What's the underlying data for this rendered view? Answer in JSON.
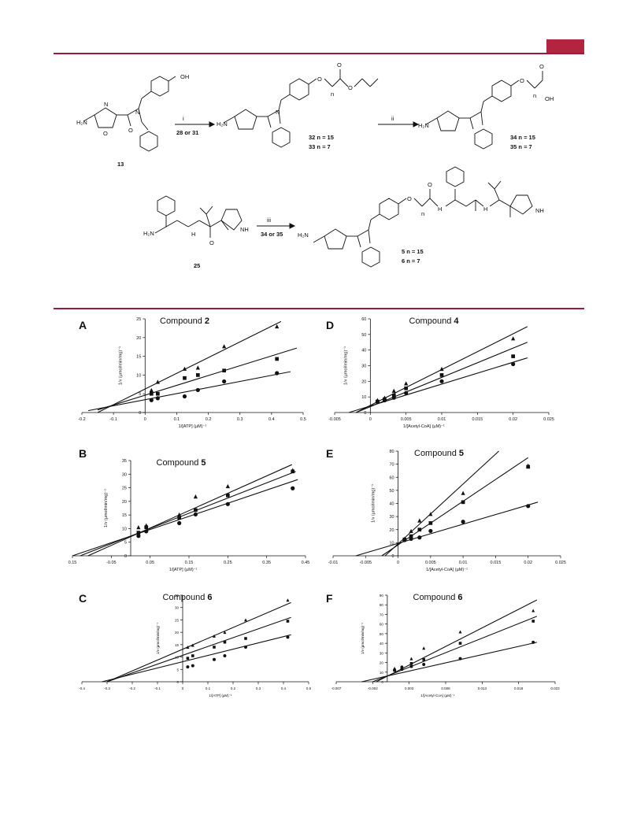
{
  "scheme": {
    "reagent1_top": "i",
    "reagent1_bottom": "28 or 31",
    "reagent2_top": "ii",
    "reagent3_top": "iii",
    "reagent3_bottom": "34 or 35",
    "compounds": {
      "c13": "13",
      "c32": "32  n = 15",
      "c33": "33  n = 7",
      "c34": "34  n = 15",
      "c35": "35  n = 7",
      "c25": "25",
      "c5": "5   n = 15",
      "c6": "6   n = 7"
    },
    "atoms": {
      "oh": "OH",
      "h2n": "H₂N",
      "o": "O",
      "n": "N",
      "nh": "NH",
      "h": "H",
      "sub_n": "n"
    }
  },
  "chart_data": [
    {
      "panel": "A",
      "type": "scatter",
      "title": "Compound 2",
      "xlabel": "1/[ATP] (µM)⁻¹",
      "ylabel": "1/v (µmol/min/mg)⁻¹",
      "xlim": [
        -0.2,
        0.5
      ],
      "ylim": [
        0,
        25
      ],
      "xticks": [
        -0.2,
        -0.1,
        0,
        0.1,
        0.2,
        0.3,
        0.4,
        0.5
      ],
      "xtick_labels": [
        "-0.2",
        "-0.1",
        "0",
        "0.1",
        "0.2",
        "0.3",
        "0.4",
        "0.5"
      ],
      "yticks": [
        0,
        5,
        10,
        15,
        20,
        25
      ],
      "ytick_labels": [
        "0",
        "5",
        "10",
        "15",
        "20",
        "25"
      ],
      "series": [
        {
          "marker": "triangle",
          "x": [
            0.02,
            0.04,
            0.125,
            0.167,
            0.25,
            0.417
          ],
          "y": [
            6.0,
            8.2,
            11.7,
            12.0,
            17.7,
            23.0
          ],
          "line": [
            -0.15,
            0.0,
            0.43,
            24.3
          ]
        },
        {
          "marker": "square",
          "x": [
            0.02,
            0.04,
            0.125,
            0.167,
            0.25,
            0.417
          ],
          "y": [
            5.0,
            5.0,
            9.2,
            10.0,
            11.2,
            14.3
          ],
          "line": [
            -0.15,
            0.7,
            0.48,
            17.2
          ]
        },
        {
          "marker": "circle",
          "x": [
            0.02,
            0.04,
            0.125,
            0.167,
            0.25,
            0.417
          ],
          "y": [
            3.3,
            3.8,
            4.3,
            6.0,
            8.3,
            10.5
          ],
          "line": [
            -0.18,
            0.5,
            0.46,
            10.9
          ]
        }
      ]
    },
    {
      "panel": "D",
      "type": "scatter",
      "title": "Compound 4",
      "xlabel": "1/[Acetyl-CoA] (µM)⁻¹",
      "ylabel": "1/v (µmol/min/mg)⁻¹",
      "xlim": [
        -0.005,
        0.025
      ],
      "ylim": [
        0,
        60
      ],
      "xticks": [
        -0.005,
        0,
        0.005,
        0.01,
        0.015,
        0.02,
        0.025
      ],
      "xtick_labels": [
        "-0.005",
        "0",
        "0.005",
        "0.01",
        "0.015",
        "0.02",
        "0.025"
      ],
      "yticks": [
        0,
        10,
        20,
        30,
        40,
        50,
        60
      ],
      "ytick_labels": [
        "0",
        "10",
        "20",
        "30",
        "40",
        "50",
        "60"
      ],
      "series": [
        {
          "marker": "triangle",
          "x": [
            0.001,
            0.002,
            0.0033,
            0.005,
            0.01,
            0.02
          ],
          "y": [
            8.0,
            9.5,
            14.0,
            18.7,
            28.0,
            47.5
          ],
          "line": [
            -0.002,
            0.0,
            0.022,
            55.0
          ]
        },
        {
          "marker": "square",
          "x": [
            0.001,
            0.002,
            0.0033,
            0.005,
            0.01,
            0.02
          ],
          "y": [
            7.0,
            8.5,
            11.0,
            15.5,
            24.0,
            36.0
          ],
          "line": [
            -0.002,
            0.0,
            0.022,
            45.0
          ]
        },
        {
          "marker": "circle",
          "x": [
            0.001,
            0.002,
            0.0033,
            0.005,
            0.01,
            0.02
          ],
          "y": [
            7.0,
            7.8,
            9.5,
            12.5,
            20.0,
            31.0
          ],
          "line": [
            -0.003,
            0.0,
            0.022,
            35.0
          ]
        }
      ]
    },
    {
      "panel": "B",
      "type": "scatter",
      "title": "Compound 5",
      "xlabel": "1/[ATP] (µM)⁻¹",
      "ylabel": "1/v (µmol/min/mg)⁻¹",
      "xlim": [
        -0.15,
        0.45
      ],
      "ylim": [
        0,
        35
      ],
      "xticks": [
        -0.15,
        -0.05,
        0.05,
        0.15,
        0.25,
        0.35,
        0.45
      ],
      "xtick_labels": [
        "0.15",
        "-0.05",
        "0.05",
        "0.15",
        "0.25",
        "0.35",
        "0.45"
      ],
      "yticks": [
        0,
        5,
        10,
        15,
        20,
        25,
        30,
        35
      ],
      "ytick_labels": [
        "0",
        "5",
        "10",
        "15",
        "20",
        "25",
        "30",
        "35"
      ],
      "series": [
        {
          "marker": "triangle",
          "x": [
            0.02,
            0.04,
            0.125,
            0.167,
            0.25,
            0.417
          ],
          "y": [
            10.5,
            11.2,
            15.2,
            21.8,
            25.6,
            31.5
          ],
          "line": [
            -0.11,
            0.0,
            0.415,
            33.5
          ]
        },
        {
          "marker": "square",
          "x": [
            0.02,
            0.04,
            0.125,
            0.167,
            0.25,
            0.417
          ],
          "y": [
            8.5,
            10.5,
            14.0,
            16.8,
            22.2,
            31.0
          ],
          "line": [
            -0.13,
            0.0,
            0.425,
            31.0
          ]
        },
        {
          "marker": "circle",
          "x": [
            0.02,
            0.04,
            0.125,
            0.167,
            0.25,
            0.417
          ],
          "y": [
            7.3,
            9.0,
            12.0,
            15.2,
            19.0,
            24.8
          ],
          "line": [
            -0.15,
            0.0,
            0.43,
            28.0
          ]
        }
      ]
    },
    {
      "panel": "E",
      "type": "scatter",
      "title": "Compound 5",
      "xlabel": "1/[Acetyl-CoA] (µM)⁻¹",
      "ylabel": "1/v (µmol/min/mg)⁻¹",
      "xlim": [
        -0.01,
        0.025
      ],
      "ylim": [
        0,
        80
      ],
      "xticks": [
        -0.01,
        -0.005,
        0,
        0.005,
        0.01,
        0.015,
        0.02,
        0.025
      ],
      "xtick_labels": [
        "-0.01",
        "-0.005",
        "0",
        "0.005",
        "0.01",
        "0.015",
        "0.02",
        "0.025"
      ],
      "yticks": [
        0,
        10,
        20,
        30,
        40,
        50,
        60,
        70,
        80
      ],
      "ytick_labels": [
        "0",
        "10",
        "20",
        "30",
        "40",
        "50",
        "60",
        "70",
        "80"
      ],
      "series": [
        {
          "marker": "triangle",
          "x": [
            0.001,
            0.002,
            0.0033,
            0.005,
            0.01,
            0.02
          ],
          "y": [
            13.0,
            19.0,
            27.0,
            32.0,
            48.0,
            69.0
          ],
          "line": [
            -0.002,
            0.0,
            0.0155,
            80.0
          ]
        },
        {
          "marker": "square",
          "x": [
            0.001,
            0.002,
            0.0033,
            0.005,
            0.01,
            0.02
          ],
          "y": [
            12.5,
            15.0,
            20.0,
            25.0,
            41.0,
            68.0
          ],
          "line": [
            -0.0025,
            0.0,
            0.02,
            75.0
          ]
        },
        {
          "marker": "circle",
          "x": [
            0.001,
            0.002,
            0.0033,
            0.005,
            0.01,
            0.02
          ],
          "y": [
            12.0,
            13.0,
            14.0,
            19.0,
            26.0,
            38.0
          ],
          "line": [
            -0.0065,
            0.0,
            0.0215,
            41.0
          ]
        }
      ]
    },
    {
      "panel": "C",
      "type": "scatter",
      "title": "Compound 6",
      "xlabel": "1/[ATP] (µM)⁻¹",
      "ylabel": "1/v (µmol/min/mg)⁻¹",
      "xlim": [
        -0.4,
        0.5
      ],
      "ylim": [
        0,
        35
      ],
      "xticks": [
        -0.4,
        -0.3,
        -0.2,
        -0.1,
        0,
        0.1,
        0.2,
        0.3,
        0.4,
        0.5
      ],
      "xtick_labels": [
        "-0.4",
        "-0.3",
        "-0.2",
        "-0.1",
        "0",
        "0.1",
        "0.2",
        "0.3",
        "0.4",
        "0.5"
      ],
      "yticks": [
        0,
        5,
        10,
        15,
        20,
        25,
        30,
        35
      ],
      "ytick_labels": [
        "0",
        "5",
        "10",
        "15",
        "20",
        "25",
        "30",
        "35"
      ],
      "series": [
        {
          "marker": "triangle",
          "x": [
            0.02,
            0.04,
            0.125,
            0.167,
            0.25,
            0.417
          ],
          "y": [
            14.0,
            14.8,
            18.5,
            20.0,
            25.0,
            33.0
          ],
          "line": [
            -0.3,
            0.0,
            0.43,
            32.0
          ]
        },
        {
          "marker": "square",
          "x": [
            0.02,
            0.04,
            0.125,
            0.167,
            0.25,
            0.417
          ],
          "y": [
            9.5,
            10.5,
            14.0,
            16.0,
            17.5,
            24.5
          ],
          "line": [
            -0.3,
            0.0,
            0.43,
            26.0
          ]
        },
        {
          "marker": "circle",
          "x": [
            0.02,
            0.04,
            0.125,
            0.167,
            0.25,
            0.417
          ],
          "y": [
            6.0,
            6.5,
            9.0,
            10.5,
            14.0,
            18.0
          ],
          "line": [
            -0.32,
            0.0,
            0.43,
            19.0
          ]
        }
      ]
    },
    {
      "panel": "F",
      "type": "scatter",
      "title": "Compound 6",
      "xlabel": "1/[Acetyl-CoA] (µM)⁻¹",
      "ylabel": "1/v (µmol/min/mg)⁻¹",
      "xlim": [
        -0.007,
        0.023
      ],
      "ylim": [
        0,
        90
      ],
      "xticks": [
        -0.007,
        -0.002,
        0.003,
        0.008,
        0.013,
        0.018,
        0.023
      ],
      "xtick_labels": [
        "-0.007",
        "-0.002",
        "0.003",
        "0.008",
        "0.013",
        "0.018",
        "0.023"
      ],
      "yticks": [
        0,
        10,
        20,
        30,
        40,
        50,
        60,
        70,
        80,
        90
      ],
      "ytick_labels": [
        "0",
        "10",
        "20",
        "30",
        "40",
        "50",
        "60",
        "70",
        "80",
        "90"
      ],
      "series": [
        {
          "marker": "triangle",
          "x": [
            0.001,
            0.002,
            0.0033,
            0.005,
            0.01,
            0.02
          ],
          "y": [
            14.0,
            16.0,
            24.0,
            35.0,
            52.0,
            74.0
          ],
          "line": [
            -0.0015,
            0.0,
            0.0205,
            85.0
          ]
        },
        {
          "marker": "square",
          "x": [
            0.001,
            0.002,
            0.0033,
            0.005,
            0.01,
            0.02
          ],
          "y": [
            12.0,
            15.0,
            19.0,
            23.0,
            40.0,
            63.0
          ],
          "line": [
            -0.002,
            0.0,
            0.0205,
            68.0
          ]
        },
        {
          "marker": "circle",
          "x": [
            0.001,
            0.002,
            0.0033,
            0.005,
            0.01,
            0.02
          ],
          "y": [
            12.0,
            13.0,
            16.0,
            18.0,
            24.0,
            41.0
          ],
          "line": [
            -0.0035,
            0.0,
            0.0205,
            41.0
          ]
        }
      ]
    }
  ]
}
